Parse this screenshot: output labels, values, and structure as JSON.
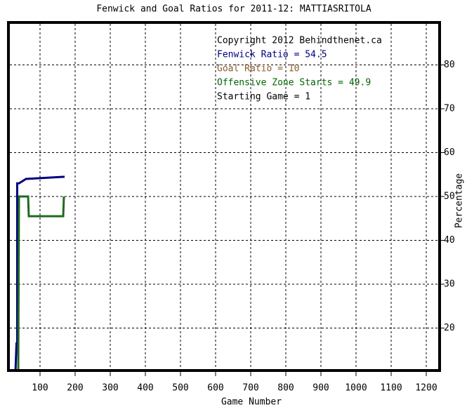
{
  "chart_data": {
    "type": "line",
    "title": "Fenwick and Goal Ratios for 2011-12: MATTIASRITOLA",
    "xlabel": "Game Number",
    "ylabel": "Percentage",
    "xlim": [
      6,
      1242
    ],
    "ylim": [
      10,
      90
    ],
    "xticks": [
      100,
      200,
      300,
      400,
      500,
      600,
      700,
      800,
      900,
      1000,
      1100,
      1200
    ],
    "yticks": [
      20,
      30,
      40,
      50,
      60,
      70,
      80
    ],
    "grid": true,
    "legend": [
      {
        "text": "Copyright 2012 Behindthenet.ca",
        "color": "#000000"
      },
      {
        "text": "Fenwick Ratio = 54.5",
        "color": "#000080"
      },
      {
        "text": "Goal Ratio = 10",
        "color": "#8b5a2b"
      },
      {
        "text": "Offensive Zone Starts = 49.9",
        "color": "#006400"
      },
      {
        "text": "Starting Game = 1",
        "color": "#000000"
      }
    ],
    "series": [
      {
        "color": "#000080",
        "x": [
          30,
          33,
          35,
          35,
          40,
          50,
          60,
          170
        ],
        "values": [
          10,
          16.5,
          16.5,
          53,
          53,
          53.5,
          54,
          54.5
        ]
      },
      {
        "color": "#1f6a1f",
        "x": [
          38,
          40,
          66,
          68,
          166,
          168
        ],
        "values": [
          10,
          50,
          50,
          45.5,
          45.5,
          50
        ]
      }
    ]
  }
}
